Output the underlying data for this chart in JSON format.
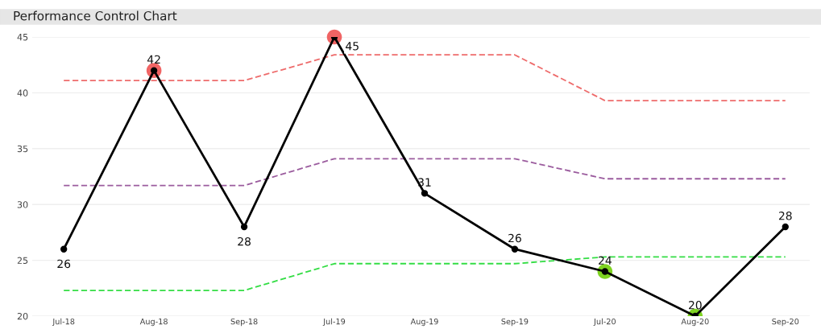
{
  "chart_data": {
    "type": "line",
    "title": "Performance Control Chart",
    "categories": [
      "Jul-18",
      "Aug-18",
      "Sep-18",
      "Jul-19",
      "Aug-19",
      "Sep-19",
      "Jul-20",
      "Aug-20",
      "Sep-20"
    ],
    "series": [
      {
        "color": "#ee6b6b",
        "line_style": "dashed",
        "marker": "none",
        "values": [
          41.1,
          41.1,
          41.1,
          43.4,
          43.4,
          43.4,
          39.3,
          39.3,
          39.3
        ]
      },
      {
        "color": "#9b5c9e",
        "line_style": "dashed",
        "marker": "none",
        "values": [
          31.7,
          31.7,
          31.7,
          34.1,
          34.1,
          34.1,
          32.3,
          32.3,
          32.3
        ]
      },
      {
        "color": "#33dd44",
        "line_style": "dashed",
        "marker": "none",
        "values": [
          22.3,
          22.3,
          22.3,
          24.7,
          24.7,
          24.7,
          25.3,
          25.3,
          25.3
        ]
      },
      {
        "type": "scatter",
        "colors": [
          "#f06464",
          "#f06464",
          "#f06464",
          "#f06464",
          "#f06464",
          "#f06464",
          "#7ed321",
          "#7ed321",
          "#7ed321"
        ],
        "values": [
          null,
          42,
          null,
          45,
          null,
          null,
          24,
          20,
          null
        ]
      },
      {
        "color": "#000000",
        "line_style": "solid",
        "marker": "circle",
        "values": [
          26,
          42,
          28,
          45,
          31,
          26,
          24,
          20,
          28
        ],
        "value_labels": [
          "26",
          "42",
          "28",
          "45",
          "31",
          "26",
          "24",
          "20",
          "28"
        ]
      }
    ],
    "ylim": [
      20,
      45
    ],
    "yticks": [
      20,
      25,
      30,
      35,
      40,
      45
    ],
    "grid": "y"
  }
}
